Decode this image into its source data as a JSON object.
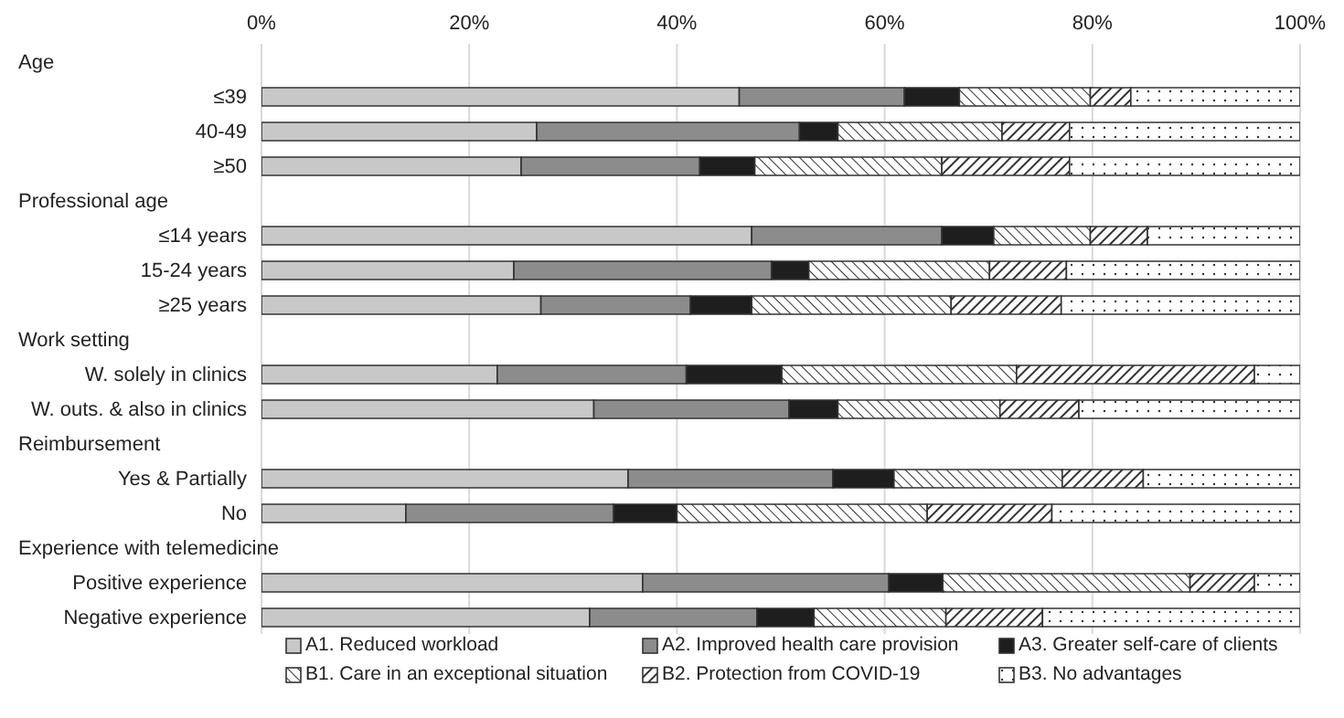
{
  "chart_data": {
    "type": "bar",
    "orientation": "horizontal",
    "stacked": true,
    "categories": [
      null,
      "≤39",
      "40-49",
      "≥50",
      null,
      "≤14 years",
      "15-24 years",
      "≥25 years",
      null,
      "W. solely in clinics",
      "W. outs. & also in clinics",
      null,
      "Yes & Partially",
      "No",
      null,
      "Positive experience",
      "Negative experience"
    ],
    "annotations": [
      "Age",
      "Professional age",
      "Work setting",
      "Reimbursement",
      "Experience with telemedicine"
    ],
    "series": [
      {
        "name": "A1. Reduced workload",
        "color": "#c8c8c8",
        "values": [
          null,
          46.0,
          26.5,
          25.0,
          null,
          47.2,
          24.3,
          26.9,
          null,
          22.7,
          32.0,
          null,
          35.3,
          13.9,
          null,
          36.7,
          31.6
        ]
      },
      {
        "name": "A2. Improved health care provision",
        "color": "#8c8c8c",
        "values": [
          null,
          15.9,
          25.3,
          17.2,
          null,
          18.3,
          24.8,
          14.4,
          null,
          18.2,
          18.8,
          null,
          19.7,
          20.0,
          null,
          23.7,
          16.1
        ]
      },
      {
        "name": "A3. Greater self-care of clients",
        "color": "#1e1e1e",
        "values": [
          null,
          5.3,
          3.7,
          5.3,
          null,
          5.0,
          3.6,
          5.9,
          null,
          9.2,
          4.7,
          null,
          5.9,
          6.1,
          null,
          5.2,
          5.5
        ]
      },
      {
        "name": "B1. Care in an exceptional situation",
        "color": "#333333",
        "values": [
          null,
          12.6,
          15.8,
          18.0,
          null,
          9.3,
          17.4,
          19.2,
          null,
          22.6,
          15.6,
          null,
          16.2,
          24.1,
          null,
          23.8,
          12.7
        ]
      },
      {
        "name": "B2. Protection from COVID-19",
        "color": "#333333",
        "values": [
          null,
          3.9,
          6.5,
          12.3,
          null,
          5.5,
          7.4,
          10.6,
          null,
          22.9,
          7.6,
          null,
          7.8,
          12.0,
          null,
          6.2,
          9.3
        ]
      },
      {
        "name": "B3. No advantages",
        "color": "#333333",
        "values": [
          null,
          16.3,
          22.2,
          22.2,
          null,
          14.7,
          22.5,
          23.0,
          null,
          4.4,
          21.3,
          null,
          15.1,
          23.9,
          null,
          4.4,
          24.8
        ]
      }
    ],
    "xlim": [
      0,
      100
    ],
    "xticks": [
      {
        "value": 0,
        "label": "0%"
      },
      {
        "value": 20,
        "label": "20%"
      },
      {
        "value": 40,
        "label": "40%"
      },
      {
        "value": 60,
        "label": "60%"
      },
      {
        "value": 80,
        "label": "80%"
      },
      {
        "value": 100,
        "label": "100%"
      }
    ],
    "grid": "x",
    "legend": "bottom"
  }
}
